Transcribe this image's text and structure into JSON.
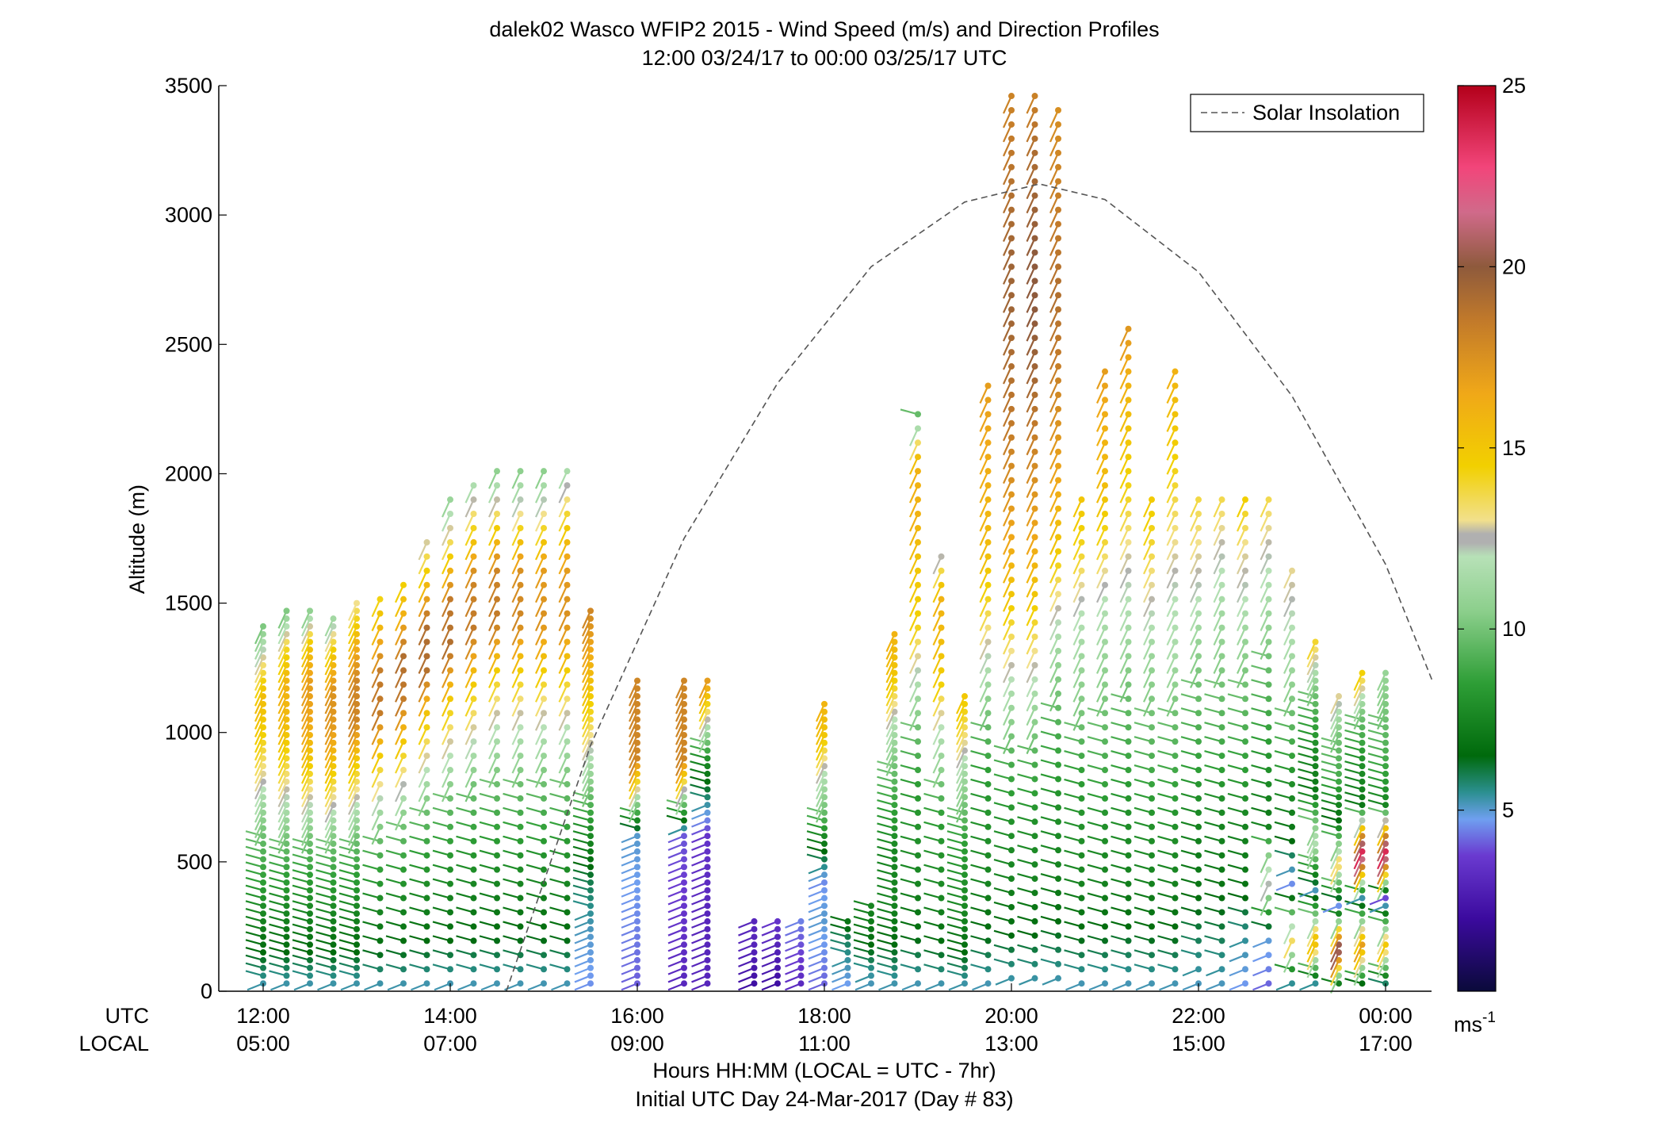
{
  "chart_data": {
    "type": "scatter",
    "title": "dalek02 Wasco WFIP2 2015 - Wind Speed (m/s) and Direction Profiles",
    "subtitle": "12:00 03/24/17 to 00:00 03/25/17  UTC",
    "ylabel": "Altitude (m)",
    "xlabel_line1": "Hours HH:MM  (LOCAL = UTC - 7hr)",
    "xlabel_line2": "Initial UTC Day 24-Mar-2017 (Day # 83)",
    "row_label_utc": "UTC",
    "row_label_local": "LOCAL",
    "xlim": [
      12.0,
      24.5
    ],
    "ylim": [
      0,
      3500
    ],
    "x_ticks_utc": [
      "12:00",
      "14:00",
      "16:00",
      "18:00",
      "20:00",
      "22:00",
      "00:00"
    ],
    "x_ticks_local": [
      "05:00",
      "07:00",
      "09:00",
      "11:00",
      "13:00",
      "15:00",
      "17:00"
    ],
    "x_tick_values": [
      12,
      14,
      16,
      18,
      20,
      22,
      24
    ],
    "y_ticks": [
      0,
      500,
      1000,
      1500,
      2000,
      2500,
      3000,
      3500
    ],
    "legend": {
      "entries": [
        "Solar Insolation"
      ],
      "position": "top-right"
    },
    "colorbar": {
      "range": [
        0,
        25
      ],
      "ticks": [
        5,
        10,
        15,
        20,
        25
      ],
      "unit_label": "ms",
      "unit_exp": "-1"
    },
    "solar_insolation": {
      "style": "dashed",
      "x": [
        14.6,
        15.5,
        16.5,
        17.5,
        18.5,
        19.5,
        20.3,
        21.0,
        22.0,
        23.0,
        24.0,
        24.5
      ],
      "y": [
        0,
        950,
        1750,
        2350,
        2800,
        3050,
        3120,
        3060,
        2780,
        2300,
        1650,
        1200
      ]
    },
    "series": [
      {
        "x": 12.0,
        "top": 1420,
        "speed": [
          5,
          6.5,
          7.5,
          8.5,
          9.5,
          11,
          13,
          14.5,
          15.5,
          13,
          10
        ]
      },
      {
        "x": 12.25,
        "top": 1480,
        "speed": [
          5,
          6.5,
          7.5,
          8.5,
          10,
          12,
          14,
          15.5,
          16,
          14,
          10
        ]
      },
      {
        "x": 12.5,
        "top": 1490,
        "speed": [
          5,
          6.5,
          7.5,
          8.5,
          10,
          12.5,
          15,
          16.5,
          17,
          15,
          10
        ]
      },
      {
        "x": 12.75,
        "top": 1450,
        "speed": [
          5,
          6.5,
          7.5,
          8.5,
          10,
          12.5,
          15,
          17,
          17.5,
          15,
          11
        ]
      },
      {
        "x": 13.0,
        "top": 1500,
        "speed": [
          5,
          6.5,
          7.5,
          8.5,
          10,
          12.5,
          15,
          18,
          18,
          16,
          13
        ]
      },
      {
        "x": 13.25,
        "top": 1540,
        "speed": [
          5,
          6.5,
          7.5,
          8.5,
          10,
          12.5,
          15,
          18.5,
          18.5,
          16,
          14
        ]
      },
      {
        "x": 13.5,
        "top": 1620,
        "speed": [
          5,
          6.5,
          7.5,
          8.5,
          10,
          12.5,
          15,
          18.5,
          19,
          16,
          14
        ]
      },
      {
        "x": 13.75,
        "top": 1780,
        "speed": [
          5,
          6.5,
          7.5,
          8.5,
          10,
          12.5,
          15,
          19,
          19,
          15,
          12
        ]
      },
      {
        "x": 14.0,
        "top": 1900,
        "speed": [
          5,
          6.5,
          7.5,
          8.5,
          10,
          12.5,
          15,
          19,
          18.5,
          14,
          11
        ]
      },
      {
        "x": 14.25,
        "top": 2000,
        "speed": [
          5,
          6.5,
          7.5,
          8.5,
          10,
          12.5,
          15,
          18.5,
          18,
          14,
          11
        ]
      },
      {
        "x": 14.5,
        "top": 2050,
        "speed": [
          5,
          6.5,
          7.5,
          8.5,
          10,
          12,
          14.5,
          18.5,
          18,
          13.5,
          10
        ]
      },
      {
        "x": 14.75,
        "top": 2050,
        "speed": [
          5,
          6.5,
          7.5,
          8.5,
          10,
          12,
          14.5,
          18,
          17.5,
          13,
          10
        ]
      },
      {
        "x": 15.0,
        "top": 2050,
        "speed": [
          5,
          6.5,
          7.5,
          8.5,
          10,
          12,
          14.5,
          17.5,
          17,
          13,
          10
        ]
      },
      {
        "x": 15.25,
        "top": 2050,
        "speed": [
          5,
          6.5,
          7.5,
          8.5,
          10,
          12,
          14.5,
          17.5,
          17,
          14,
          11
        ]
      },
      {
        "x": 15.5,
        "top": 1480,
        "speed": [
          4.5,
          5,
          6,
          8,
          11,
          14,
          16,
          18
        ]
      },
      {
        "x": 16.0,
        "top": 1200,
        "speed": [
          4,
          4.5,
          5,
          18,
          18
        ]
      },
      {
        "x": 16.5,
        "top": 1200,
        "speed": [
          3,
          3.5,
          4,
          18,
          18
        ]
      },
      {
        "x": 16.75,
        "top": 1200,
        "speed": [
          3,
          3,
          3.5,
          8,
          17
        ]
      },
      {
        "x": 17.25,
        "top": 280,
        "speed": [
          2,
          2.5,
          3,
          3
        ]
      },
      {
        "x": 17.5,
        "top": 280,
        "speed": [
          2,
          2.5,
          3,
          3.5
        ]
      },
      {
        "x": 17.75,
        "top": 290,
        "speed": [
          3,
          3.5,
          4,
          4.5
        ]
      },
      {
        "x": 18.0,
        "top": 1130,
        "speed": [
          4,
          4.5,
          5,
          4.5,
          7,
          10,
          12,
          15,
          16
        ]
      },
      {
        "x": 18.25,
        "top": 280,
        "speed": [
          4.5,
          5,
          5.5,
          6,
          7
        ]
      },
      {
        "x": 18.5,
        "top": 330,
        "speed": [
          5,
          5.5,
          6.5,
          7,
          7.5
        ]
      },
      {
        "x": 18.75,
        "top": 1400,
        "speed": [
          5,
          6.5,
          7.5,
          7.5,
          8.5,
          10,
          12,
          15,
          16
        ]
      },
      {
        "x": 19.0,
        "top": 2250,
        "speed": [
          5,
          6.5,
          7.5,
          8,
          8.5,
          10,
          12,
          14.5,
          15,
          16,
          16,
          9
        ]
      },
      {
        "x": 19.25,
        "top": 1700,
        "speed": [
          5,
          6.5,
          7.5,
          8,
          8.5,
          10.5,
          12,
          14.5,
          15.5,
          16,
          12
        ]
      },
      {
        "x": 19.5,
        "top": 1150,
        "speed": [
          5,
          6.5,
          7.5,
          8,
          8.5,
          10,
          11.5,
          13.5,
          15
        ]
      },
      {
        "x": 19.75,
        "top": 2350,
        "speed": [
          5,
          6.5,
          7.5,
          8,
          8.5,
          10,
          12,
          14,
          15.5,
          16,
          16.5,
          17
        ]
      },
      {
        "x": 20.0,
        "top": 3500,
        "speed": [
          5,
          6.5,
          7.5,
          8,
          9,
          11,
          13,
          15,
          16.5,
          17.5,
          18.5,
          19,
          19.5,
          19.5,
          19,
          18.5,
          18
        ]
      },
      {
        "x": 20.25,
        "top": 3500,
        "speed": [
          5,
          6.5,
          7.5,
          8,
          9,
          11,
          13,
          15,
          16.5,
          17.5,
          18.5,
          19.5,
          20,
          20,
          19.5,
          19,
          18
        ]
      },
      {
        "x": 20.5,
        "top": 3450,
        "speed": [
          5,
          6.5,
          7.5,
          8,
          9,
          10.5,
          12.5,
          15,
          16.5,
          17.5,
          18.5,
          19,
          18.5,
          18,
          17.5
        ]
      },
      {
        "x": 20.75,
        "top": 1900,
        "speed": [
          5,
          6.5,
          7.5,
          8,
          8.5,
          10,
          11,
          12,
          14,
          15
        ]
      },
      {
        "x": 21.0,
        "top": 2400,
        "speed": [
          5,
          6.5,
          7.5,
          8,
          9,
          10,
          11,
          12,
          14,
          15.5,
          16,
          17
        ]
      },
      {
        "x": 21.25,
        "top": 2600,
        "speed": [
          5,
          6.5,
          7.5,
          8,
          9,
          10,
          11.5,
          12.5,
          14,
          15,
          16,
          17.5
        ]
      },
      {
        "x": 21.5,
        "top": 1950,
        "speed": [
          5,
          6.5,
          7.5,
          8,
          9,
          10,
          11,
          12.5,
          14,
          15
        ]
      },
      {
        "x": 21.75,
        "top": 2400,
        "speed": [
          5,
          6.5,
          7.5,
          8,
          9,
          10,
          11.5,
          12,
          13,
          14,
          15,
          16
        ]
      },
      {
        "x": 22.0,
        "top": 1950,
        "speed": [
          5,
          6,
          7,
          7.5,
          8.5,
          9.5,
          10.5,
          12,
          13,
          14
        ]
      },
      {
        "x": 22.25,
        "top": 1950,
        "speed": [
          5,
          6,
          7,
          7.5,
          8.5,
          9.5,
          10.5,
          11.5,
          12.5,
          14
        ]
      },
      {
        "x": 22.5,
        "top": 1950,
        "speed": [
          4.5,
          5.5,
          7,
          7.5,
          8.5,
          9.5,
          10.5,
          12,
          13,
          15
        ]
      },
      {
        "x": 22.75,
        "top": 1950,
        "speed": [
          4,
          5,
          13,
          7,
          8,
          9,
          10,
          11.5,
          12.5,
          14
        ]
      },
      {
        "x": 23.0,
        "top": 1650,
        "speed": [
          4,
          14,
          4.5,
          7,
          8,
          9.5,
          11,
          12,
          13
        ]
      },
      {
        "x": 23.25,
        "top": 1350,
        "speed": [
          3.5,
          16,
          5,
          12,
          7,
          8,
          10,
          14
        ]
      },
      {
        "x": 23.5,
        "top": 1150,
        "speed": [
          4,
          22,
          4.5,
          14,
          6.5,
          9,
          10,
          13
        ]
      },
      {
        "x": 23.75,
        "top": 1250,
        "speed": [
          4.5,
          17,
          5,
          24,
          7,
          8,
          10,
          15
        ]
      },
      {
        "x": 24.0,
        "top": 1250,
        "speed": [
          4,
          15,
          3.5,
          24,
          7.5,
          9,
          10,
          11
        ]
      }
    ]
  }
}
